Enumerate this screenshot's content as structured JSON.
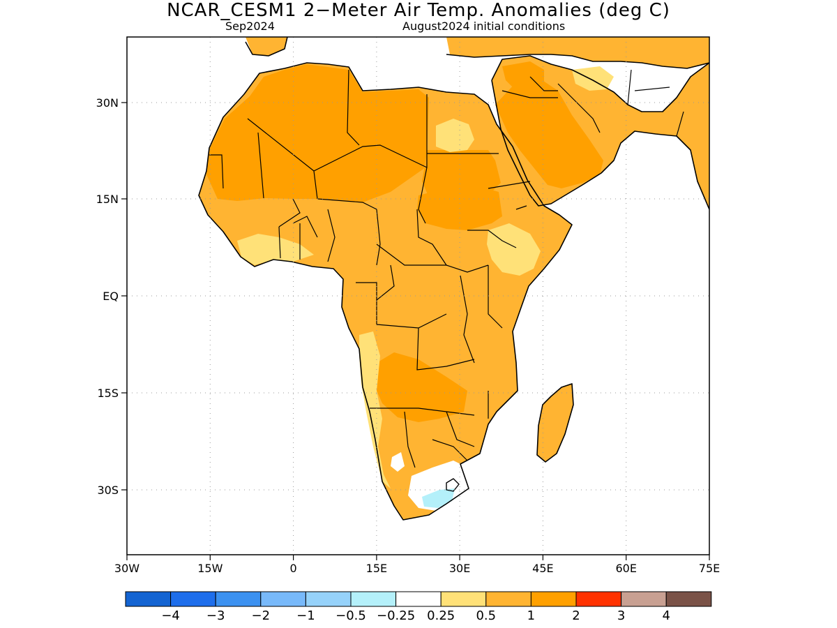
{
  "title": "NCAR_CESM1 2−Meter Air Temp. Anomalies (deg C)",
  "subtitle_left": "Sep2024",
  "subtitle_right": "August2024 initial conditions",
  "map": {
    "lon_range": [
      -30,
      75
    ],
    "lat_range": [
      -47,
      43
    ],
    "x_ticks": [
      {
        "value": -30,
        "label": "30W"
      },
      {
        "value": -15,
        "label": "15W"
      },
      {
        "value": 0,
        "label": "0"
      },
      {
        "value": 15,
        "label": "15E"
      },
      {
        "value": 30,
        "label": "30E"
      },
      {
        "value": 45,
        "label": "45E"
      },
      {
        "value": 60,
        "label": "60E"
      },
      {
        "value": 75,
        "label": "75E"
      }
    ],
    "y_ticks": [
      {
        "value": 30,
        "label": "30N"
      },
      {
        "value": 15,
        "label": "15N"
      },
      {
        "value": 0,
        "label": "EQ"
      },
      {
        "value": -15,
        "label": "15S"
      },
      {
        "value": -30,
        "label": "30S"
      }
    ],
    "grid": "dotted"
  },
  "colorbar": {
    "colors": [
      "#1464d2",
      "#1e6eeb",
      "#3c91f0",
      "#78b9fa",
      "#96d2fa",
      "#b4f0fa",
      "#ffffff",
      "#ffe178",
      "#ffb432",
      "#ffa000",
      "#ff3200",
      "#c8a092",
      "#7a5247"
    ],
    "labels": [
      "−4",
      "−3",
      "−2",
      "−1",
      "−0.5",
      "−0.25",
      "0.25",
      "0.5",
      "1",
      "2",
      "3",
      "4"
    ]
  },
  "legend_colors": {
    "c05": "#ffe178",
    "c1": "#ffb432",
    "c2": "#ffa000",
    "cool": "#b4f0fa",
    "ocean": "#ffffff",
    "border": "#000000"
  }
}
